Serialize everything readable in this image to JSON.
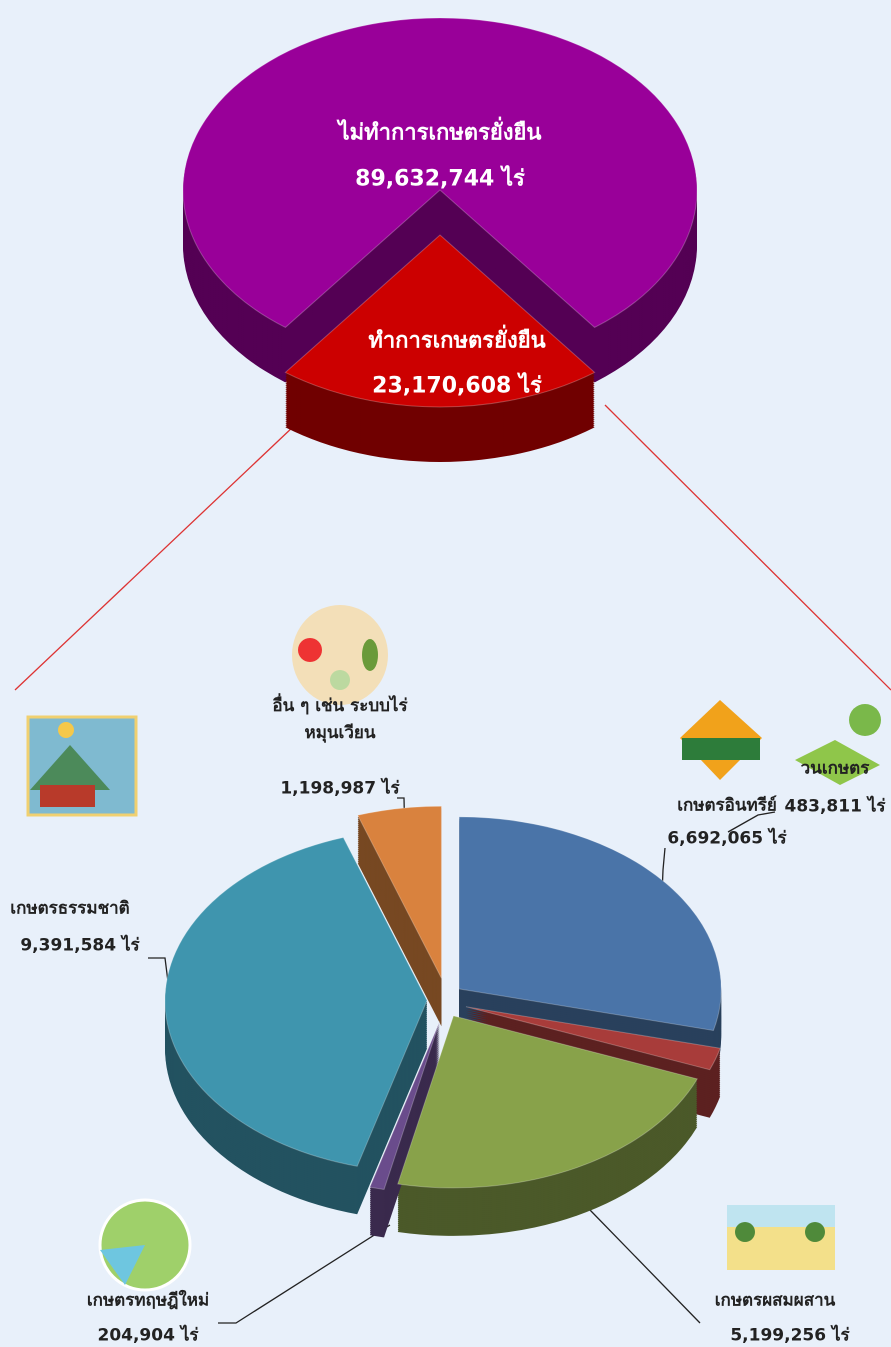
{
  "chart_data": [
    {
      "type": "pie",
      "categories": [
        "ไม่ทำการเกษตรยั่งยืน",
        "ทำการเกษตรยั่งยืน"
      ],
      "values": [
        89632744,
        23170608
      ],
      "value_labels": [
        "89,632,744 ไร่",
        "23,170,608 ไร่"
      ],
      "colors": [
        "#990099",
        "#cc0000"
      ]
    },
    {
      "type": "pie",
      "categories": [
        "เกษตรอินทรีย์",
        "วนเกษตร",
        "เกษตรผสมผสาน",
        "เกษตรทฤษฎีใหม่",
        "เกษตรธรรมชาติ",
        "อื่น ๆ เช่น ระบบไร่หมุนเวียน"
      ],
      "values": [
        6692065,
        483811,
        5199256,
        204904,
        9391584,
        1198987
      ],
      "value_labels": [
        "6,692,065 ไร่",
        "483,811 ไร่",
        "5,199,256 ไร่",
        "204,904 ไร่",
        "9,391,584 ไร่",
        "1,198,987 ไร่"
      ],
      "colors": [
        "#4a74a8",
        "#a83c3a",
        "#88a24a",
        "#6a4c8c",
        "#3f95ae",
        "#d9823e"
      ]
    }
  ]
}
